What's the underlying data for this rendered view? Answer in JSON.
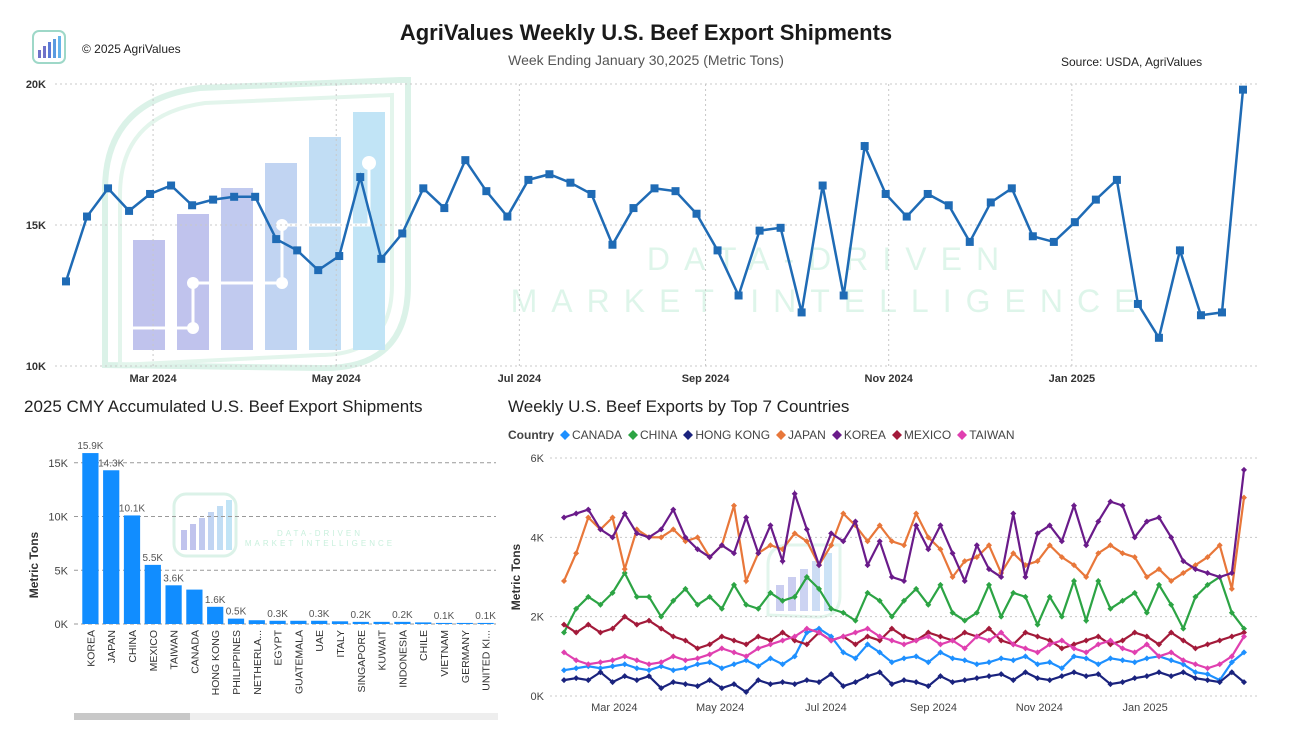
{
  "header": {
    "title": "AgriValues Weekly U.S. Beef Export Shipments",
    "subtitle": "Week Ending January 30,2025 (Metric Tons)",
    "copyright": "© 2025 AgriValues",
    "source": "Source: USDA, AgriValues"
  },
  "watermark": {
    "line1": "DATA-DRIVEN",
    "line2": "MARKET INTELLIGENCE"
  },
  "colors": {
    "weekly_line": "#1f6bb5",
    "bar": "#118dff",
    "CANADA": "#1e90ff",
    "CHINA": "#2ca444",
    "HONG KONG": "#1a237e",
    "JAPAN": "#e8773a",
    "KOREA": "#6a1b8a",
    "MEXICO": "#a31a3a",
    "TAIWAN": "#e040b0"
  },
  "chart_data": [
    {
      "type": "line",
      "title": "AgriValues Weekly U.S. Beef Export Shipments",
      "x_start": "2024-02-01",
      "x_step_days": 7,
      "x_ticks": [
        "Mar 2024",
        "May 2024",
        "Jul 2024",
        "Sep 2024",
        "Nov 2024",
        "Jan 2025"
      ],
      "x_tick_dates": [
        "2024-03-01",
        "2024-05-01",
        "2024-07-01",
        "2024-09-01",
        "2024-11-01",
        "2025-01-01"
      ],
      "y_ticks": [
        "10K",
        "15K",
        "20K"
      ],
      "ylim": [
        10000,
        20000
      ],
      "grid": true,
      "values": [
        13000,
        15300,
        16300,
        15500,
        16100,
        16400,
        15700,
        15900,
        16000,
        16000,
        14500,
        14100,
        13400,
        13900,
        16700,
        13800,
        14700,
        16300,
        15600,
        17300,
        16200,
        15300,
        16600,
        16800,
        16500,
        16100,
        14300,
        15600,
        16300,
        16200,
        15400,
        14100,
        12500,
        14800,
        14900,
        11900,
        16400,
        12500,
        17800,
        16100,
        15300,
        16100,
        15700,
        14400,
        15800,
        16300,
        14600,
        14400,
        15100,
        15900,
        16600,
        12200,
        11000,
        14100,
        11800,
        11900,
        19800
      ]
    },
    {
      "type": "bar",
      "title": "2025 CMY Accumulated U.S. Beef Export Shipments",
      "ylabel": "Metric Tons",
      "categories": [
        "KOREA",
        "JAPAN",
        "CHINA",
        "MEXICO",
        "TAIWAN",
        "CANADA",
        "HONG KONG",
        "PHILIPPINES",
        "NETHERLA...",
        "EGYPT",
        "GUATEMALA",
        "UAE",
        "ITALY",
        "SINGAPORE",
        "KUWAIT",
        "INDONESIA",
        "CHILE",
        "VIETNAM",
        "GERMANY",
        "UNITED KI..."
      ],
      "values": [
        15900,
        14300,
        10100,
        5500,
        3600,
        3200,
        1600,
        500,
        350,
        300,
        300,
        300,
        250,
        200,
        200,
        200,
        150,
        100,
        100,
        100
      ],
      "data_labels": [
        "15.9K",
        "14.3K",
        "10.1K",
        "5.5K",
        "3.6K",
        "",
        "1.6K",
        "0.5K",
        "",
        "0.3K",
        "",
        "0.3K",
        "",
        "0.2K",
        "",
        "0.2K",
        "",
        "0.1K",
        "",
        "0.1K"
      ],
      "y_ticks": [
        "0K",
        "5K",
        "10K",
        "15K"
      ],
      "ylim": [
        0,
        16000
      ]
    },
    {
      "type": "line",
      "title": "Weekly U.S. Beef Exports by Top 7 Countries",
      "ylabel": "Metric Tons",
      "legend_title": "Country",
      "legend_placement": "top-left",
      "x_start": "2024-02-01",
      "x_step_days": 7,
      "x_ticks": [
        "Mar 2024",
        "May 2024",
        "Jul 2024",
        "Sep 2024",
        "Nov 2024",
        "Jan 2025"
      ],
      "x_tick_dates": [
        "2024-03-01",
        "2024-05-01",
        "2024-07-01",
        "2024-09-01",
        "2024-11-01",
        "2025-01-01"
      ],
      "y_ticks": [
        "0K",
        "2K",
        "4K",
        "6K"
      ],
      "ylim": [
        0,
        6000
      ],
      "series": [
        {
          "name": "CANADA",
          "values": [
            650,
            700,
            750,
            700,
            750,
            800,
            700,
            650,
            750,
            650,
            700,
            800,
            850,
            700,
            800,
            900,
            750,
            950,
            800,
            1000,
            1600,
            1700,
            1500,
            1100,
            950,
            1300,
            1100,
            850,
            950,
            1000,
            850,
            1100,
            950,
            900,
            800,
            850,
            950,
            900,
            1000,
            800,
            850,
            700,
            1000,
            950,
            800,
            950,
            900,
            850,
            950,
            1000,
            900,
            800,
            600,
            550,
            400,
            850,
            1100
          ]
        },
        {
          "name": "CHINA",
          "values": [
            1600,
            2200,
            2500,
            2300,
            2600,
            3100,
            2500,
            2500,
            2000,
            2400,
            2700,
            2300,
            2500,
            2200,
            2800,
            2300,
            2200,
            2600,
            2400,
            2500,
            3000,
            2700,
            2200,
            2100,
            1900,
            2600,
            2400,
            2000,
            2400,
            2700,
            2300,
            2800,
            2100,
            1900,
            2100,
            2800,
            2000,
            2600,
            2500,
            1800,
            2500,
            2000,
            2900,
            1900,
            2900,
            2200,
            2400,
            2600,
            2100,
            2800,
            2300,
            1700,
            2500,
            2800,
            3000,
            2100,
            1700
          ]
        },
        {
          "name": "HONG KONG",
          "values": [
            400,
            450,
            400,
            600,
            350,
            500,
            400,
            500,
            200,
            350,
            300,
            250,
            400,
            200,
            300,
            100,
            400,
            300,
            350,
            300,
            400,
            350,
            550,
            250,
            350,
            500,
            600,
            300,
            400,
            350,
            250,
            500,
            350,
            400,
            450,
            500,
            550,
            400,
            600,
            450,
            400,
            500,
            600,
            500,
            550,
            300,
            350,
            450,
            500,
            600,
            500,
            600,
            450,
            400,
            350,
            600,
            350
          ]
        },
        {
          "name": "JAPAN",
          "values": [
            2900,
            3600,
            4500,
            4200,
            4500,
            3200,
            4200,
            4000,
            4000,
            4200,
            3900,
            4000,
            3500,
            3800,
            4800,
            2900,
            3600,
            3800,
            3700,
            4100,
            3900,
            3300,
            3800,
            4600,
            4300,
            3900,
            4300,
            3900,
            3800,
            4600,
            4000,
            3700,
            3000,
            3400,
            3500,
            3800,
            3100,
            3600,
            3300,
            3400,
            3800,
            3500,
            3300,
            3000,
            3600,
            3800,
            3600,
            3500,
            3000,
            3200,
            2900,
            3100,
            3300,
            3500,
            3800,
            2700,
            5000
          ]
        },
        {
          "name": "KOREA",
          "values": [
            4500,
            4600,
            4700,
            4200,
            4000,
            4600,
            4100,
            4000,
            4200,
            4700,
            4000,
            3700,
            3500,
            3800,
            3600,
            4500,
            3600,
            4300,
            3400,
            5100,
            4200,
            3300,
            4100,
            3900,
            4400,
            3300,
            3900,
            3000,
            2900,
            4300,
            3700,
            4300,
            3600,
            2900,
            3800,
            3200,
            3000,
            4600,
            3000,
            4100,
            4300,
            3900,
            4800,
            3800,
            4400,
            4900,
            4800,
            4000,
            4400,
            4500,
            4000,
            3400,
            3200,
            3100,
            3000,
            3100,
            5700
          ]
        },
        {
          "name": "MEXICO",
          "values": [
            1800,
            1600,
            1800,
            1600,
            1700,
            2000,
            1800,
            1900,
            1700,
            1500,
            1400,
            1200,
            1300,
            1500,
            1400,
            1300,
            1500,
            1400,
            1600,
            1400,
            1300,
            1600,
            1400,
            1500,
            1300,
            1500,
            1400,
            1700,
            1500,
            1400,
            1600,
            1500,
            1400,
            1600,
            1500,
            1700,
            1400,
            1300,
            1600,
            1500,
            1400,
            1200,
            1300,
            1400,
            1500,
            1300,
            1400,
            1600,
            1500,
            1300,
            1600,
            1400,
            1200,
            1300,
            1400,
            1500,
            1600
          ]
        },
        {
          "name": "TAIWAN",
          "values": [
            1100,
            900,
            800,
            850,
            900,
            1000,
            900,
            800,
            850,
            1000,
            900,
            950,
            1050,
            1200,
            1100,
            1000,
            1200,
            1300,
            1400,
            1500,
            1700,
            1600,
            1400,
            1500,
            1600,
            1700,
            1500,
            1400,
            1300,
            1400,
            1500,
            1300,
            1400,
            1200,
            1500,
            1400,
            1600,
            1300,
            1200,
            1100,
            1300,
            1400,
            1200,
            1100,
            1300,
            1400,
            1200,
            1100,
            1300,
            1000,
            1100,
            900,
            800,
            700,
            800,
            1000,
            1500
          ]
        }
      ]
    }
  ]
}
